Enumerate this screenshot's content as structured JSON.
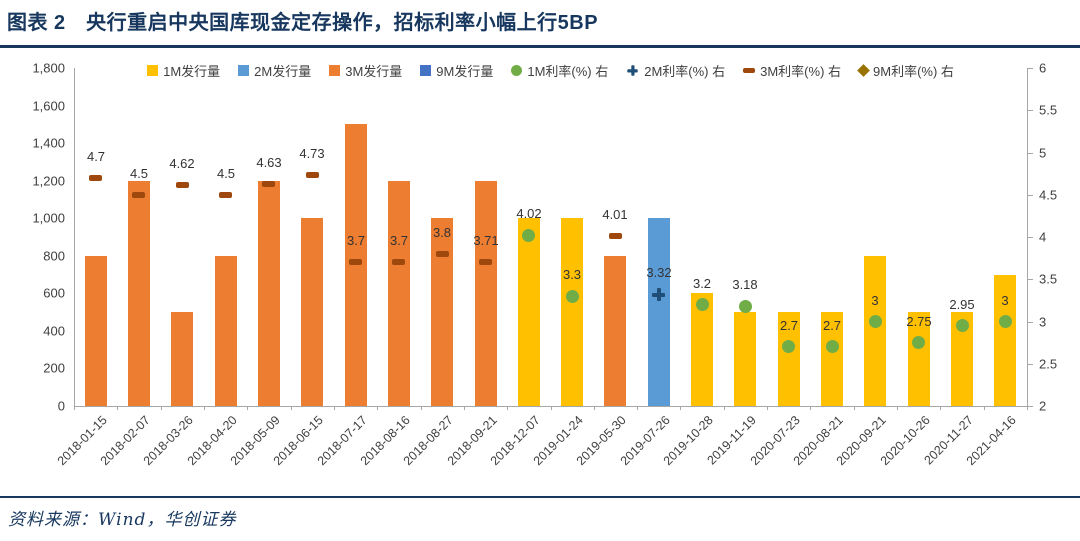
{
  "title": "图表 2　央行重启中央国库现金定存操作，招标利率小幅上行5BP",
  "source": "资料来源：Wind，华创证券",
  "colors": {
    "title_navy": "#17375E",
    "axis_line": "#A6A6A6",
    "text_gray": "#404040",
    "bar_1m": "#FFC000",
    "bar_2m": "#5B9BD5",
    "bar_3m": "#ED7D31",
    "bar_9m": "#4472C4",
    "rate_1m": "#70AD47",
    "rate_2m": "#1F4E79",
    "rate_3m": "#9E480E",
    "rate_9m": "#997300"
  },
  "chart_data": {
    "type": "bar",
    "subtype": "combo-bar-scatter",
    "grid": false,
    "legend_position": "top",
    "left_axis": {
      "min": 0,
      "max": 1800,
      "step": 200,
      "ticks": [
        "0",
        "200",
        "400",
        "600",
        "800",
        "1,000",
        "1,200",
        "1,400",
        "1,600",
        "1,800"
      ]
    },
    "right_axis": {
      "min": 2,
      "max": 6,
      "step": 0.5,
      "ticks": [
        "2",
        "2.5",
        "3",
        "3.5",
        "4",
        "4.5",
        "5",
        "5.5",
        "6"
      ]
    },
    "series": [
      {
        "name": "1M发行量",
        "kind": "bar",
        "tenor": "1M",
        "color": "#FFC000"
      },
      {
        "name": "2M发行量",
        "kind": "bar",
        "tenor": "2M",
        "color": "#5B9BD5"
      },
      {
        "name": "3M发行量",
        "kind": "bar",
        "tenor": "3M",
        "color": "#ED7D31"
      },
      {
        "name": "9M发行量",
        "kind": "bar",
        "tenor": "9M",
        "color": "#4472C4"
      },
      {
        "name": "1M利率(%) 右",
        "kind": "marker",
        "marker": "circle",
        "tenor": "1M",
        "color": "#70AD47"
      },
      {
        "name": "2M利率(%) 右",
        "kind": "marker",
        "marker": "plus",
        "tenor": "2M",
        "color": "#1F4E79"
      },
      {
        "name": "3M利率(%) 右",
        "kind": "marker",
        "marker": "dash",
        "tenor": "3M",
        "color": "#9E480E"
      },
      {
        "name": "9M利率(%) 右",
        "kind": "marker",
        "marker": "diamond",
        "tenor": "9M",
        "color": "#997300"
      }
    ],
    "categories": [
      "2018-01-15",
      "2018-02-07",
      "2018-03-26",
      "2018-04-20",
      "2018-05-09",
      "2018-06-15",
      "2018-07-17",
      "2018-08-16",
      "2018-08-27",
      "2018-09-21",
      "2018-12-07",
      "2019-01-24",
      "2019-05-30",
      "2019-07-26",
      "2019-10-28",
      "2019-11-19",
      "2020-07-23",
      "2020-08-21",
      "2020-09-21",
      "2020-10-26",
      "2020-11-27",
      "2021-04-16"
    ],
    "points": [
      {
        "date": "2018-01-15",
        "tenor": "3M",
        "volume": 800,
        "rate": 4.7,
        "label": "4.7"
      },
      {
        "date": "2018-02-07",
        "tenor": "3M",
        "volume": 1200,
        "rate": 4.5,
        "label": "4.5"
      },
      {
        "date": "2018-03-26",
        "tenor": "3M",
        "volume": 500,
        "rate": 4.62,
        "label": "4.62"
      },
      {
        "date": "2018-04-20",
        "tenor": "3M",
        "volume": 800,
        "rate": 4.5,
        "label": "4.5"
      },
      {
        "date": "2018-05-09",
        "tenor": "3M",
        "volume": 1200,
        "rate": 4.63,
        "label": "4.63"
      },
      {
        "date": "2018-06-15",
        "tenor": "3M",
        "volume": 1000,
        "rate": 4.73,
        "label": "4.73"
      },
      {
        "date": "2018-07-17",
        "tenor": "3M",
        "volume": 1500,
        "rate": 3.7,
        "label": "3.7"
      },
      {
        "date": "2018-08-16",
        "tenor": "3M",
        "volume": 1200,
        "rate": 3.7,
        "label": "3.7"
      },
      {
        "date": "2018-08-27",
        "tenor": "3M",
        "volume": 1000,
        "rate": 3.8,
        "label": "3.8"
      },
      {
        "date": "2018-09-21",
        "tenor": "3M",
        "volume": 1200,
        "rate": 3.71,
        "label": "3.71"
      },
      {
        "date": "2018-12-07",
        "tenor": "1M",
        "volume": 1000,
        "rate": 4.02,
        "label": "4.02"
      },
      {
        "date": "2019-01-24",
        "tenor": "1M",
        "volume": 1000,
        "rate": 3.3,
        "label": "3.3"
      },
      {
        "date": "2019-05-30",
        "tenor": "3M",
        "volume": 800,
        "rate": 4.01,
        "label": "4.01"
      },
      {
        "date": "2019-07-26",
        "tenor": "2M",
        "volume": 1000,
        "rate": 3.32,
        "label": "3.32"
      },
      {
        "date": "2019-10-28",
        "tenor": "1M",
        "volume": 600,
        "rate": 3.2,
        "label": "3.2"
      },
      {
        "date": "2019-11-19",
        "tenor": "1M",
        "volume": 500,
        "rate": 3.18,
        "label": "3.18"
      },
      {
        "date": "2020-07-23",
        "tenor": "1M",
        "volume": 500,
        "rate": 2.7,
        "label": "2.7"
      },
      {
        "date": "2020-08-21",
        "tenor": "1M",
        "volume": 500,
        "rate": 2.7,
        "label": "2.7"
      },
      {
        "date": "2020-09-21",
        "tenor": "1M",
        "volume": 800,
        "rate": 3,
        "label": "3"
      },
      {
        "date": "2020-10-26",
        "tenor": "1M",
        "volume": 500,
        "rate": 2.75,
        "label": "2.75"
      },
      {
        "date": "2020-11-27",
        "tenor": "1M",
        "volume": 500,
        "rate": 2.95,
        "label": "2.95"
      },
      {
        "date": "2021-04-16",
        "tenor": "1M",
        "volume": 700,
        "rate": 3,
        "label": "3"
      }
    ]
  }
}
